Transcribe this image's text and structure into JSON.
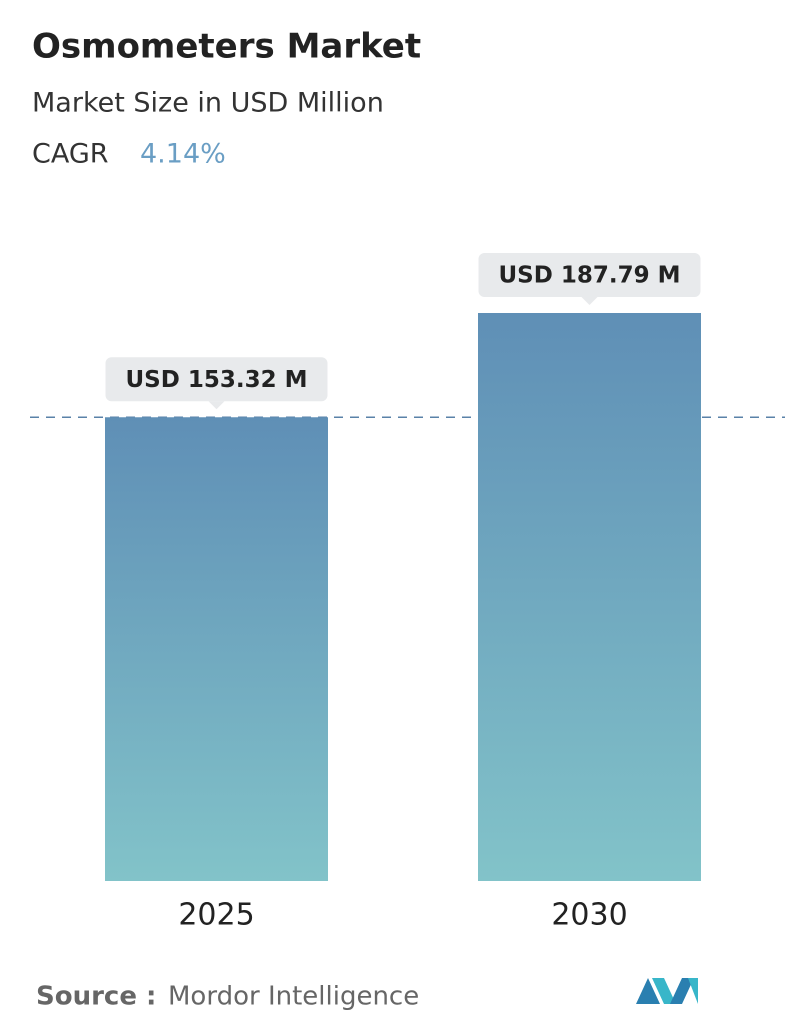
{
  "chart_data": {
    "type": "bar",
    "title": "Osmometers Market",
    "subtitle": "Market Size in USD Million",
    "cagr_label": "CAGR",
    "cagr": "4.14%",
    "categories": [
      "2025",
      "2030"
    ],
    "values": [
      153.32,
      187.79
    ],
    "value_labels": [
      "USD 153.32 M",
      "USD 187.79 M"
    ],
    "color_top": "#5f8fb6",
    "color_bottom": "#82c3c9",
    "source_label": "Source :",
    "source": "Mordor Intelligence"
  }
}
